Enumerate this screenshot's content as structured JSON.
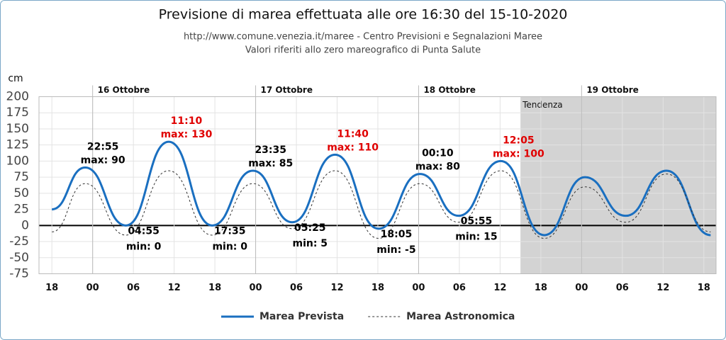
{
  "chart_data": {
    "type": "line",
    "title": "Previsione di marea effettuata alle ore 16:30 del 15-10-2020",
    "subtitle": [
      "http://www.comune.venezia.it/maree - Centro Previsioni e Segnalazioni Maree",
      "Valori riferiti allo zero mareografico di Punta Salute"
    ],
    "y_label": "cm",
    "x": [
      18,
      22.9,
      28.9,
      35.2,
      41.6,
      47.6,
      53.4,
      59.7,
      66.1,
      72.2,
      77.9,
      84.1,
      90.5,
      96.5,
      102.5,
      108.5,
      115
    ],
    "series": [
      {
        "name": "Marea Prevista",
        "color": "#1a6fc0",
        "dashed": false,
        "values": [
          25,
          90,
          0,
          130,
          0,
          85,
          5,
          110,
          -5,
          80,
          15,
          100,
          -15,
          75,
          15,
          85,
          -15
        ]
      },
      {
        "name": "Marea Astronomica",
        "color": "#333333",
        "dashed": true,
        "values": [
          -10,
          65,
          -15,
          85,
          -15,
          65,
          -5,
          85,
          -20,
          65,
          5,
          85,
          -20,
          60,
          5,
          80,
          -10
        ]
      }
    ],
    "xlim": [
      16.1,
      115.8
    ],
    "xticks": [
      18,
      {
        "value": 24,
        "label": "00"
      },
      {
        "value": 30,
        "label": "06"
      },
      {
        "value": 36,
        "label": "12"
      },
      {
        "value": 42,
        "label": "18"
      },
      {
        "value": 48,
        "label": "00"
      },
      {
        "value": 54,
        "label": "06"
      },
      {
        "value": 60,
        "label": "12"
      },
      {
        "value": 66,
        "label": "18"
      },
      {
        "value": 72,
        "label": "00"
      },
      {
        "value": 78,
        "label": "06"
      },
      {
        "value": 84,
        "label": "12"
      },
      {
        "value": 90,
        "label": "18"
      },
      {
        "value": 96,
        "label": "00"
      },
      {
        "value": 102,
        "label": "06"
      },
      {
        "value": 108,
        "label": "12"
      },
      {
        "value": 114,
        "label": "18"
      }
    ],
    "ylim": [
      -75,
      200
    ],
    "yticks": [
      -75,
      -50,
      -25,
      0,
      25,
      50,
      75,
      100,
      125,
      150,
      175,
      200
    ],
    "days": [
      {
        "value": 24,
        "label": "16 Ottobre"
      },
      {
        "value": 48,
        "label": "17 Ottobre"
      },
      {
        "value": 72,
        "label": "18 Ottobre"
      },
      {
        "value": 96,
        "label": "19 Ottobre"
      }
    ],
    "shade": {
      "from": 87,
      "label": "Tendenza",
      "color": "#d3d3d3"
    },
    "grid": true,
    "annotations": [
      {
        "time": "22:55",
        "label": "max: 90",
        "x": 22.9,
        "y": 90,
        "kind": "max",
        "color": "#000000"
      },
      {
        "time": "04:55",
        "label": "min: 0",
        "x": 28.9,
        "y": 0,
        "kind": "min",
        "color": "#000000"
      },
      {
        "time": "11:10",
        "label": "max: 130",
        "x": 35.2,
        "y": 130,
        "kind": "max",
        "color": "#e00000"
      },
      {
        "time": "17:35",
        "label": "min: 0",
        "x": 41.6,
        "y": 0,
        "kind": "min",
        "color": "#000000"
      },
      {
        "time": "23:35",
        "label": "max: 85",
        "x": 47.6,
        "y": 85,
        "kind": "max",
        "color": "#000000"
      },
      {
        "time": "05:25",
        "label": "min: 5",
        "x": 53.4,
        "y": 5,
        "kind": "min",
        "color": "#000000"
      },
      {
        "time": "11:40",
        "label": "max: 110",
        "x": 59.7,
        "y": 110,
        "kind": "max",
        "color": "#e00000"
      },
      {
        "time": "18:05",
        "label": "min: -5",
        "x": 66.1,
        "y": -5,
        "kind": "min",
        "color": "#000000"
      },
      {
        "time": "00:10",
        "label": "max: 80",
        "x": 72.2,
        "y": 80,
        "kind": "max",
        "color": "#000000"
      },
      {
        "time": "05:55",
        "label": "min: 15",
        "x": 77.9,
        "y": 15,
        "kind": "min",
        "color": "#000000"
      },
      {
        "time": "12:05",
        "label": "max: 100",
        "x": 84.1,
        "y": 100,
        "kind": "max",
        "color": "#e00000"
      }
    ]
  }
}
